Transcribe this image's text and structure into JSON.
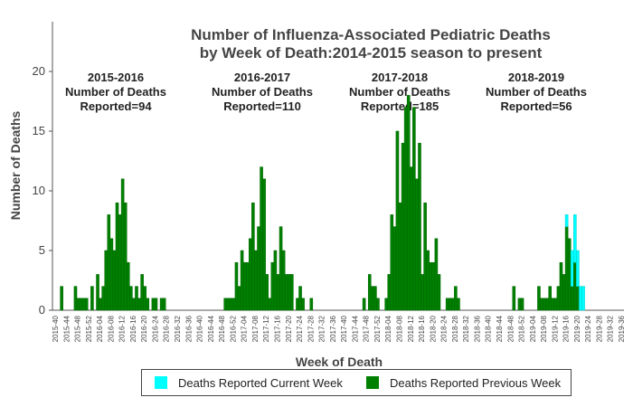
{
  "chart_data": {
    "type": "bar",
    "title_lines": [
      "Number of Influenza-Associated Pediatric Deaths",
      "by Week of Death:2014-2015 season to present"
    ],
    "xlabel": "Week of Death",
    "ylabel": "Number of Deaths",
    "ylim": [
      0,
      20
    ],
    "yticks": [
      0,
      5,
      10,
      15,
      20
    ],
    "tick_labels": [
      "2015-40",
      "2015-44",
      "2015-48",
      "2015-52",
      "2016-04",
      "2016-08",
      "2016-12",
      "2016-16",
      "2016-20",
      "2016-24",
      "2016-28",
      "2016-32",
      "2016-36",
      "2016-40",
      "2016-44",
      "2016-48",
      "2016-52",
      "2017-04",
      "2017-08",
      "2017-12",
      "2017-16",
      "2017-20",
      "2017-24",
      "2017-28",
      "2017-32",
      "2017-36",
      "2017-40",
      "2017-44",
      "2017-48",
      "2017-52",
      "2018-04",
      "2018-08",
      "2018-12",
      "2018-16",
      "2018-20",
      "2018-24",
      "2018-28",
      "2018-32",
      "2018-36",
      "2018-40",
      "2018-44",
      "2018-48",
      "2018-52",
      "2019-04",
      "2019-08",
      "2019-12",
      "2019-16",
      "2019-20",
      "2019-24",
      "2019-28",
      "2019-32",
      "2019-36"
    ],
    "season_annotations": [
      {
        "lines": [
          "2015-2016",
          "Number of Deaths",
          "Reported=94"
        ]
      },
      {
        "lines": [
          "2016-2017",
          "Number of Deaths",
          "Reported=110"
        ]
      },
      {
        "lines": [
          "2017-2018",
          "Number of Deaths",
          "Reported=185"
        ]
      },
      {
        "lines": [
          "2018-2019",
          "Number of Deaths",
          "Reported=56"
        ]
      }
    ],
    "series": [
      {
        "name": "Deaths Reported Previous Week",
        "color": "#008000",
        "values": [
          0,
          0,
          2,
          0,
          0,
          0,
          0,
          2,
          1,
          1,
          1,
          1,
          0,
          2,
          0,
          3,
          1,
          2,
          5,
          8,
          6,
          5,
          9,
          8,
          11,
          9,
          4,
          2,
          1,
          2,
          1,
          3,
          2,
          1,
          0,
          1,
          1,
          0,
          1,
          1,
          0,
          0,
          0,
          0,
          0,
          0,
          0,
          0,
          0,
          0,
          0,
          0,
          0,
          0,
          0,
          0,
          0,
          0,
          0,
          0,
          0,
          0,
          0,
          0,
          0,
          0,
          0,
          0,
          0,
          0,
          0,
          0,
          0,
          0,
          0,
          0,
          0,
          0,
          0,
          0,
          0,
          0,
          0,
          0,
          0,
          0,
          0,
          0,
          0,
          0,
          0,
          0,
          0,
          0,
          0,
          0,
          0,
          0,
          0,
          0,
          0,
          0,
          0,
          0,
          0,
          0,
          0,
          0,
          0,
          0,
          0,
          0,
          0,
          0,
          0,
          0,
          0,
          0,
          0,
          0,
          0,
          0,
          0,
          0,
          0,
          0,
          0,
          0,
          0,
          0,
          0,
          0,
          0,
          0,
          0,
          0,
          0,
          0,
          0,
          0,
          0,
          0,
          0,
          0,
          0,
          0,
          0,
          0,
          0,
          0,
          0,
          0,
          0,
          0,
          0,
          0,
          0,
          0,
          0,
          0,
          0,
          0,
          0,
          0,
          0,
          0,
          0,
          0,
          0,
          0,
          0,
          0,
          0,
          0,
          0,
          0,
          0,
          0,
          0,
          0,
          0,
          0,
          0,
          0,
          0,
          0,
          0,
          0,
          0,
          0,
          0,
          0,
          0,
          0,
          0,
          0,
          0,
          0,
          0,
          0,
          0,
          0,
          0,
          0,
          0,
          0,
          0,
          0,
          0,
          0,
          0,
          0,
          0,
          0
        ]
      },
      {
        "name": "Deaths Reported Current Week",
        "color": "#00FFFF",
        "values": []
      }
    ]
  },
  "legend": {
    "current": "Deaths Reported Current Week",
    "previous": "Deaths Reported Previous Week"
  }
}
